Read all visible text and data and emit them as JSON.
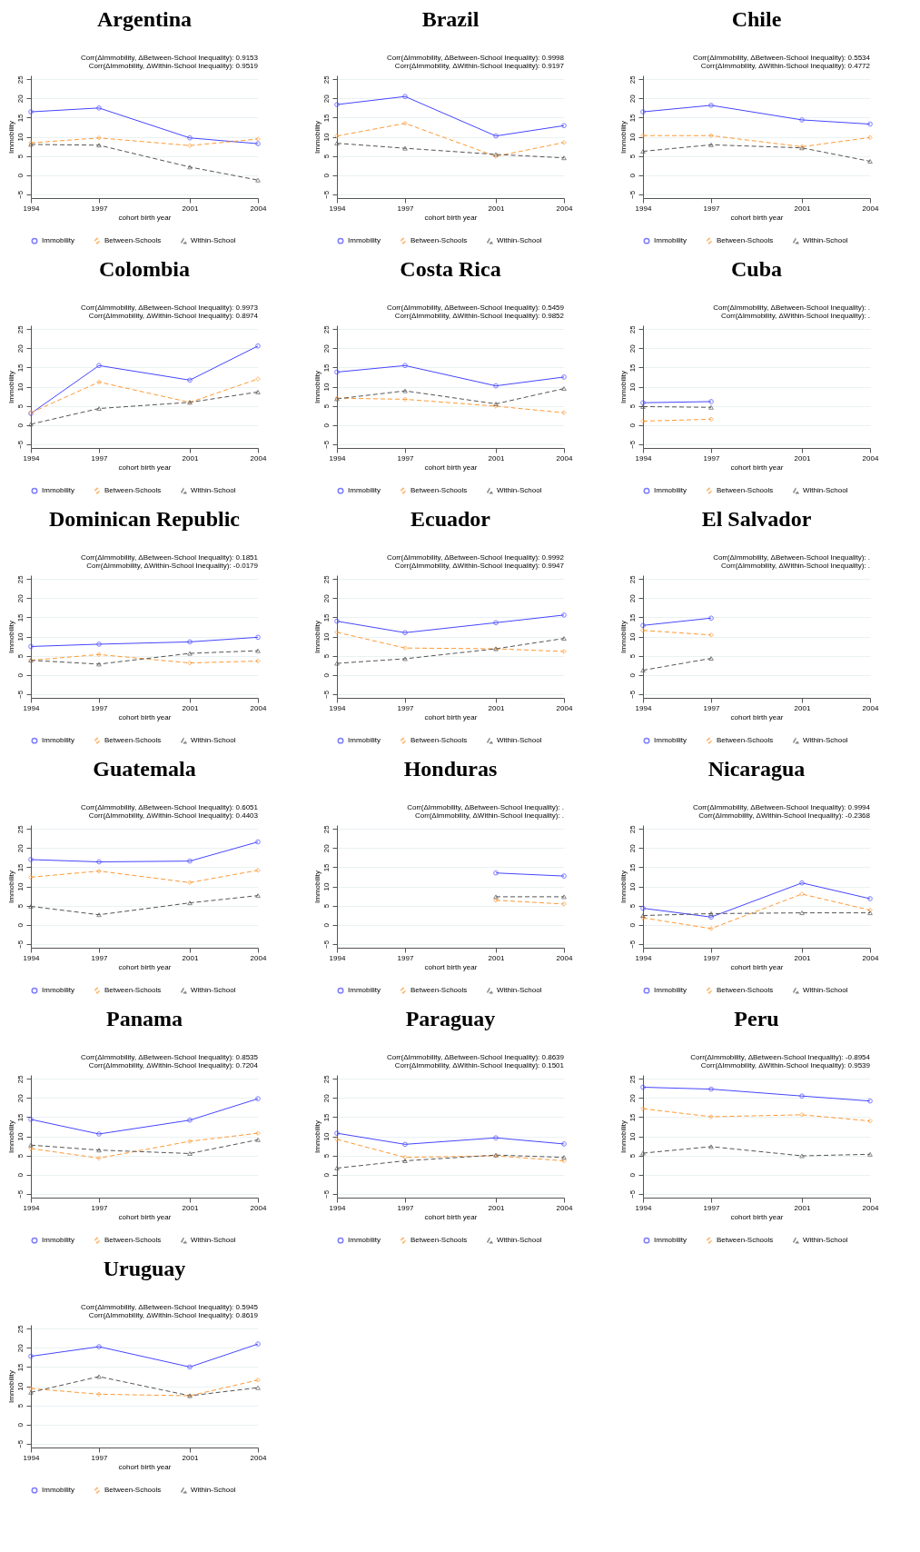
{
  "chart_data": [
    {
      "type": "line",
      "title": "Argentina",
      "annotations": [
        "Corr(ΔImmobility, ΔBetween-School Inequality): 0.9153",
        "Corr(ΔImmobility, ΔWithin-School Inequality): 0.9519"
      ],
      "xlabel": "cohort birth year",
      "ylabel": "Immobility",
      "x": [
        1994,
        1997,
        2001,
        2004
      ],
      "xlim": [
        1994,
        2004
      ],
      "xticks": [
        1994,
        1997,
        2001,
        2004
      ],
      "ylim": [
        -6,
        26
      ],
      "yticks": [
        -5,
        0,
        5,
        10,
        15,
        20,
        25
      ],
      "grid": "y",
      "legend": "bottom",
      "series": [
        {
          "name": "Immobility",
          "color": "#4646ff",
          "marker": "circle",
          "line_style": "solid",
          "values": [
            16.5,
            17.5,
            9.7,
            8.2
          ]
        },
        {
          "name": "Between-Schools",
          "color": "#ff9933",
          "marker": "diamond",
          "line_style": "dashed",
          "values": [
            8.4,
            9.7,
            7.7,
            9.4
          ]
        },
        {
          "name": "Within-School",
          "color": "#555555",
          "marker": "triangle",
          "line_style": "dashed",
          "values": [
            8.0,
            7.8,
            2.1,
            -1.3
          ]
        }
      ]
    },
    {
      "type": "line",
      "title": "Brazil",
      "annotations": [
        "Corr(ΔImmobility, ΔBetween-School Inequality): 0.9998",
        "Corr(ΔImmobility, ΔWithin-School Inequality): 0.9197"
      ],
      "xlabel": "cohort birth year",
      "ylabel": "Immobility",
      "x": [
        1994,
        1997,
        2001,
        2004
      ],
      "xlim": [
        1994,
        2004
      ],
      "xticks": [
        1994,
        1997,
        2001,
        2004
      ],
      "ylim": [
        -6,
        26
      ],
      "yticks": [
        -5,
        0,
        5,
        10,
        15,
        20,
        25
      ],
      "grid": "y",
      "legend": "bottom",
      "series": [
        {
          "name": "Immobility",
          "color": "#4646ff",
          "marker": "circle",
          "line_style": "solid",
          "values": [
            18.4,
            20.5,
            10.2,
            12.9
          ]
        },
        {
          "name": "Between-Schools",
          "color": "#ff9933",
          "marker": "diamond",
          "line_style": "dashed",
          "values": [
            10.2,
            13.5,
            4.9,
            8.5
          ]
        },
        {
          "name": "Within-School",
          "color": "#555555",
          "marker": "triangle",
          "line_style": "dashed",
          "values": [
            8.3,
            7.0,
            5.4,
            4.5
          ]
        }
      ]
    },
    {
      "type": "line",
      "title": "Chile",
      "annotations": [
        "Corr(ΔImmobility, ΔBetween-School Inequality): 0.5534",
        "Corr(ΔImmobility, ΔWithin-School Inequality): 0.4772"
      ],
      "xlabel": "cohort birth year",
      "ylabel": "Immobility",
      "x": [
        1994,
        1997,
        2001,
        2004
      ],
      "xlim": [
        1994,
        2004
      ],
      "xticks": [
        1994,
        1997,
        2001,
        2004
      ],
      "ylim": [
        -6,
        26
      ],
      "yticks": [
        -5,
        0,
        5,
        10,
        15,
        20,
        25
      ],
      "grid": "y",
      "legend": "bottom",
      "series": [
        {
          "name": "Immobility",
          "color": "#4646ff",
          "marker": "circle",
          "line_style": "solid",
          "values": [
            16.5,
            18.2,
            14.4,
            13.3
          ]
        },
        {
          "name": "Between-Schools",
          "color": "#ff9933",
          "marker": "diamond",
          "line_style": "dashed",
          "values": [
            10.3,
            10.3,
            7.4,
            9.8
          ]
        },
        {
          "name": "Within-School",
          "color": "#555555",
          "marker": "triangle",
          "line_style": "dashed",
          "values": [
            6.2,
            7.9,
            7.1,
            3.6
          ]
        }
      ]
    },
    {
      "type": "line",
      "title": "Colombia",
      "annotations": [
        "Corr(ΔImmobility, ΔBetween-School Inequality): 0.9973",
        "Corr(ΔImmobility, ΔWithin-School Inequality): 0.8974"
      ],
      "xlabel": "cohort birth year",
      "ylabel": "Immobility",
      "x": [
        1994,
        1997,
        2001,
        2004
      ],
      "xlim": [
        1994,
        2004
      ],
      "xticks": [
        1994,
        1997,
        2001,
        2004
      ],
      "ylim": [
        -6,
        26
      ],
      "yticks": [
        -5,
        0,
        5,
        10,
        15,
        20,
        25
      ],
      "grid": "y",
      "legend": "bottom",
      "series": [
        {
          "name": "Immobility",
          "color": "#4646ff",
          "marker": "circle",
          "line_style": "solid",
          "values": [
            3.0,
            15.5,
            11.7,
            20.6
          ]
        },
        {
          "name": "Between-Schools",
          "color": "#ff9933",
          "marker": "diamond",
          "line_style": "dashed",
          "values": [
            3.2,
            11.2,
            5.9,
            12.0
          ]
        },
        {
          "name": "Within-School",
          "color": "#555555",
          "marker": "triangle",
          "line_style": "dashed",
          "values": [
            0.2,
            4.3,
            5.9,
            8.6
          ]
        }
      ]
    },
    {
      "type": "line",
      "title": "Costa Rica",
      "annotations": [
        "Corr(ΔImmobility, ΔBetween-School Inequality): 0.5459",
        "Corr(ΔImmobility, ΔWithin-School Inequality): 0.9852"
      ],
      "xlabel": "cohort birth year",
      "ylabel": "Immobility",
      "x": [
        1994,
        1997,
        2001,
        2004
      ],
      "xlim": [
        1994,
        2004
      ],
      "xticks": [
        1994,
        1997,
        2001,
        2004
      ],
      "ylim": [
        -6,
        26
      ],
      "yticks": [
        -5,
        0,
        5,
        10,
        15,
        20,
        25
      ],
      "grid": "y",
      "legend": "bottom",
      "series": [
        {
          "name": "Immobility",
          "color": "#4646ff",
          "marker": "circle",
          "line_style": "solid",
          "values": [
            13.8,
            15.5,
            10.2,
            12.5
          ]
        },
        {
          "name": "Between-Schools",
          "color": "#ff9933",
          "marker": "diamond",
          "line_style": "dashed",
          "values": [
            7.0,
            6.7,
            4.9,
            3.2
          ]
        },
        {
          "name": "Within-School",
          "color": "#555555",
          "marker": "triangle",
          "line_style": "dashed",
          "values": [
            6.8,
            8.9,
            5.5,
            9.5
          ]
        }
      ]
    },
    {
      "type": "line",
      "title": "Cuba",
      "annotations": [
        "Corr(ΔImmobility, ΔBetween-School Inequality): .",
        "Corr(ΔImmobility, ΔWithin-School Inequality): ."
      ],
      "xlabel": "cohort birth year",
      "ylabel": "Immobility",
      "x": [
        1994,
        1997
      ],
      "xlim": [
        1994,
        2004
      ],
      "xticks": [
        1994,
        1997,
        2001,
        2004
      ],
      "ylim": [
        -6,
        26
      ],
      "yticks": [
        -5,
        0,
        5,
        10,
        15,
        20,
        25
      ],
      "grid": "y",
      "legend": "bottom",
      "series": [
        {
          "name": "Immobility",
          "color": "#4646ff",
          "marker": "circle",
          "line_style": "solid",
          "values": [
            5.8,
            6.1
          ]
        },
        {
          "name": "Between-Schools",
          "color": "#ff9933",
          "marker": "diamond",
          "line_style": "dashed",
          "values": [
            1.0,
            1.5
          ]
        },
        {
          "name": "Within-School",
          "color": "#555555",
          "marker": "triangle",
          "line_style": "dashed",
          "values": [
            4.8,
            4.6
          ]
        }
      ]
    },
    {
      "type": "line",
      "title": "Dominican Republic",
      "annotations": [
        "Corr(ΔImmobility, ΔBetween-School Inequality): 0.1851",
        "Corr(ΔImmobility, ΔWithin-School Inequality): -0.0179"
      ],
      "xlabel": "cohort birth year",
      "ylabel": "Immobility",
      "x": [
        1994,
        1997,
        2001,
        2004
      ],
      "xlim": [
        1994,
        2004
      ],
      "xticks": [
        1994,
        1997,
        2001,
        2004
      ],
      "ylim": [
        -6,
        26
      ],
      "yticks": [
        -5,
        0,
        5,
        10,
        15,
        20,
        25
      ],
      "grid": "y",
      "legend": "bottom",
      "series": [
        {
          "name": "Immobility",
          "color": "#4646ff",
          "marker": "circle",
          "line_style": "solid",
          "values": [
            7.4,
            8.0,
            8.6,
            9.8
          ]
        },
        {
          "name": "Between-Schools",
          "color": "#ff9933",
          "marker": "diamond",
          "line_style": "dashed",
          "values": [
            3.8,
            5.3,
            3.1,
            3.6
          ]
        },
        {
          "name": "Within-School",
          "color": "#555555",
          "marker": "triangle",
          "line_style": "dashed",
          "values": [
            3.8,
            2.8,
            5.6,
            6.3
          ]
        }
      ]
    },
    {
      "type": "line",
      "title": "Ecuador",
      "annotations": [
        "Corr(ΔImmobility, ΔBetween-School Inequality): 0.9992",
        "Corr(ΔImmobility, ΔWithin-School Inequality): 0.9947"
      ],
      "xlabel": "cohort birth year",
      "ylabel": "Immobility",
      "x": [
        1994,
        1997,
        2001,
        2004
      ],
      "xlim": [
        1994,
        2004
      ],
      "xticks": [
        1994,
        1997,
        2001,
        2004
      ],
      "ylim": [
        -6,
        26
      ],
      "yticks": [
        -5,
        0,
        5,
        10,
        15,
        20,
        25
      ],
      "grid": "y",
      "legend": "bottom",
      "series": [
        {
          "name": "Immobility",
          "color": "#4646ff",
          "marker": "circle",
          "line_style": "solid",
          "values": [
            14.0,
            11.0,
            13.6,
            15.6
          ]
        },
        {
          "name": "Between-Schools",
          "color": "#ff9933",
          "marker": "diamond",
          "line_style": "dashed",
          "values": [
            11.1,
            7.0,
            6.8,
            6.1
          ]
        },
        {
          "name": "Within-School",
          "color": "#555555",
          "marker": "triangle",
          "line_style": "dashed",
          "values": [
            3.0,
            4.2,
            6.8,
            9.5
          ]
        }
      ]
    },
    {
      "type": "line",
      "title": "El Salvador",
      "annotations": [
        "Corr(ΔImmobility, ΔBetween-School Inequality): .",
        "Corr(ΔImmobility, ΔWithin-School Inequality): ."
      ],
      "xlabel": "cohort birth year",
      "ylabel": "Immobility",
      "x": [
        1994,
        1997
      ],
      "xlim": [
        1994,
        2004
      ],
      "xticks": [
        1994,
        1997,
        2001,
        2004
      ],
      "ylim": [
        -6,
        26
      ],
      "yticks": [
        -5,
        0,
        5,
        10,
        15,
        20,
        25
      ],
      "grid": "y",
      "legend": "bottom",
      "series": [
        {
          "name": "Immobility",
          "color": "#4646ff",
          "marker": "circle",
          "line_style": "solid",
          "values": [
            12.9,
            14.8
          ]
        },
        {
          "name": "Between-Schools",
          "color": "#ff9933",
          "marker": "diamond",
          "line_style": "dashed",
          "values": [
            11.6,
            10.4
          ]
        },
        {
          "name": "Within-School",
          "color": "#555555",
          "marker": "triangle",
          "line_style": "dashed",
          "values": [
            1.2,
            4.3
          ]
        }
      ]
    },
    {
      "type": "line",
      "title": "Guatemala",
      "annotations": [
        "Corr(ΔImmobility, ΔBetween-School Inequality): 0.6051",
        "Corr(ΔImmobility, ΔWithin-School Inequality): 0.4403"
      ],
      "xlabel": "cohort birth year",
      "ylabel": "Immobility",
      "x": [
        1994,
        1997,
        2001,
        2004
      ],
      "xlim": [
        1994,
        2004
      ],
      "xticks": [
        1994,
        1997,
        2001,
        2004
      ],
      "ylim": [
        -6,
        26
      ],
      "yticks": [
        -5,
        0,
        5,
        10,
        15,
        20,
        25
      ],
      "grid": "y",
      "legend": "bottom",
      "series": [
        {
          "name": "Immobility",
          "color": "#4646ff",
          "marker": "circle",
          "line_style": "solid",
          "values": [
            17.0,
            16.4,
            16.6,
            21.6
          ]
        },
        {
          "name": "Between-Schools",
          "color": "#ff9933",
          "marker": "diamond",
          "line_style": "dashed",
          "values": [
            12.4,
            14.0,
            11.0,
            14.2
          ]
        },
        {
          "name": "Within-School",
          "color": "#555555",
          "marker": "triangle",
          "line_style": "dashed",
          "values": [
            4.8,
            2.6,
            5.7,
            7.6
          ]
        }
      ]
    },
    {
      "type": "line",
      "title": "Honduras",
      "annotations": [
        "Corr(ΔImmobility, ΔBetween-School Inequality): .",
        "Corr(ΔImmobility, ΔWithin-School Inequality): ."
      ],
      "xlabel": "cohort birth year",
      "ylabel": "Immobility",
      "x": [
        2001,
        2004
      ],
      "xlim": [
        1994,
        2004
      ],
      "xticks": [
        1994,
        1997,
        2001,
        2004
      ],
      "ylim": [
        -6,
        26
      ],
      "yticks": [
        -5,
        0,
        5,
        10,
        15,
        20,
        25
      ],
      "grid": "y",
      "legend": "bottom",
      "series": [
        {
          "name": "Immobility",
          "color": "#4646ff",
          "marker": "circle",
          "line_style": "solid",
          "values": [
            13.5,
            12.7
          ]
        },
        {
          "name": "Between-Schools",
          "color": "#ff9933",
          "marker": "diamond",
          "line_style": "dashed",
          "values": [
            6.4,
            5.4
          ]
        },
        {
          "name": "Within-School",
          "color": "#555555",
          "marker": "triangle",
          "line_style": "dashed",
          "values": [
            7.3,
            7.3
          ]
        }
      ]
    },
    {
      "type": "line",
      "title": "Nicaragua",
      "annotations": [
        "Corr(ΔImmobility, ΔBetween-School Inequality): 0.9994",
        "Corr(ΔImmobility, ΔWithin-School Inequality): -0.2368"
      ],
      "xlabel": "cohort birth year",
      "ylabel": "Immobility",
      "x": [
        1994,
        1997,
        2001,
        2004
      ],
      "xlim": [
        1994,
        2004
      ],
      "xticks": [
        1994,
        1997,
        2001,
        2004
      ],
      "ylim": [
        -6,
        26
      ],
      "yticks": [
        -5,
        0,
        5,
        10,
        15,
        20,
        25
      ],
      "grid": "y",
      "legend": "bottom",
      "series": [
        {
          "name": "Immobility",
          "color": "#4646ff",
          "marker": "circle",
          "line_style": "solid",
          "values": [
            4.3,
            2.0,
            10.9,
            6.8
          ]
        },
        {
          "name": "Between-Schools",
          "color": "#ff9933",
          "marker": "diamond",
          "line_style": "dashed",
          "values": [
            1.8,
            -1.0,
            8.0,
            3.8
          ]
        },
        {
          "name": "Within-School",
          "color": "#555555",
          "marker": "triangle",
          "line_style": "dashed",
          "values": [
            2.4,
            2.9,
            3.1,
            3.1
          ]
        }
      ]
    },
    {
      "type": "line",
      "title": "Panama",
      "annotations": [
        "Corr(ΔImmobility, ΔBetween-School Inequality): 0.8535",
        "Corr(ΔImmobility, ΔWithin-School Inequality): 0.7204"
      ],
      "xlabel": "cohort birth year",
      "ylabel": "Immobility",
      "x": [
        1994,
        1997,
        2001,
        2004
      ],
      "xlim": [
        1994,
        2004
      ],
      "xticks": [
        1994,
        1997,
        2001,
        2004
      ],
      "ylim": [
        -6,
        26
      ],
      "yticks": [
        -5,
        0,
        5,
        10,
        15,
        20,
        25
      ],
      "grid": "y",
      "legend": "bottom",
      "series": [
        {
          "name": "Immobility",
          "color": "#4646ff",
          "marker": "circle",
          "line_style": "solid",
          "values": [
            14.4,
            10.6,
            14.2,
            19.8
          ]
        },
        {
          "name": "Between-Schools",
          "color": "#ff9933",
          "marker": "diamond",
          "line_style": "dashed",
          "values": [
            6.8,
            4.3,
            8.7,
            10.8
          ]
        },
        {
          "name": "Within-School",
          "color": "#555555",
          "marker": "triangle",
          "line_style": "dashed",
          "values": [
            7.7,
            6.4,
            5.5,
            9.1
          ]
        }
      ]
    },
    {
      "type": "line",
      "title": "Paraguay",
      "annotations": [
        "Corr(ΔImmobility, ΔBetween-School Inequality): 0.8639",
        "Corr(ΔImmobility, ΔWithin-School Inequality): 0.1501"
      ],
      "xlabel": "cohort birth year",
      "ylabel": "Immobility",
      "x": [
        1994,
        1997,
        2001,
        2004
      ],
      "xlim": [
        1994,
        2004
      ],
      "xticks": [
        1994,
        1997,
        2001,
        2004
      ],
      "ylim": [
        -6,
        26
      ],
      "yticks": [
        -5,
        0,
        5,
        10,
        15,
        20,
        25
      ],
      "grid": "y",
      "legend": "bottom",
      "series": [
        {
          "name": "Immobility",
          "color": "#4646ff",
          "marker": "circle",
          "line_style": "solid",
          "values": [
            10.8,
            7.9,
            9.6,
            8.0
          ]
        },
        {
          "name": "Between-Schools",
          "color": "#ff9933",
          "marker": "diamond",
          "line_style": "dashed",
          "values": [
            9.2,
            4.5,
            4.9,
            3.6
          ]
        },
        {
          "name": "Within-School",
          "color": "#555555",
          "marker": "triangle",
          "line_style": "dashed",
          "values": [
            1.7,
            3.6,
            5.1,
            4.5
          ]
        }
      ]
    },
    {
      "type": "line",
      "title": "Peru",
      "annotations": [
        "Corr(ΔImmobility, ΔBetween-School Inequality): -0.8954",
        "Corr(ΔImmobility, ΔWithin-School Inequality): 0.9539"
      ],
      "xlabel": "cohort birth year",
      "ylabel": "Immobility",
      "x": [
        1994,
        1997,
        2001,
        2004
      ],
      "xlim": [
        1994,
        2004
      ],
      "xticks": [
        1994,
        1997,
        2001,
        2004
      ],
      "ylim": [
        -6,
        26
      ],
      "yticks": [
        -5,
        0,
        5,
        10,
        15,
        20,
        25
      ],
      "grid": "y",
      "legend": "bottom",
      "series": [
        {
          "name": "Immobility",
          "color": "#4646ff",
          "marker": "circle",
          "line_style": "solid",
          "values": [
            22.8,
            22.3,
            20.5,
            19.2
          ]
        },
        {
          "name": "Between-Schools",
          "color": "#ff9933",
          "marker": "diamond",
          "line_style": "dashed",
          "values": [
            17.2,
            15.1,
            15.6,
            14.0
          ]
        },
        {
          "name": "Within-School",
          "color": "#555555",
          "marker": "triangle",
          "line_style": "dashed",
          "values": [
            5.6,
            7.3,
            4.9,
            5.3
          ]
        }
      ]
    },
    {
      "type": "line",
      "title": "Uruguay",
      "annotations": [
        "Corr(ΔImmobility, ΔBetween-School Inequality): 0.5945",
        "Corr(ΔImmobility, ΔWithin-School Inequality): 0.8619"
      ],
      "xlabel": "cohort birth year",
      "ylabel": "Immobility",
      "x": [
        1994,
        1997,
        2001,
        2004
      ],
      "xlim": [
        1994,
        2004
      ],
      "xticks": [
        1994,
        1997,
        2001,
        2004
      ],
      "ylim": [
        -6,
        26
      ],
      "yticks": [
        -5,
        0,
        5,
        10,
        15,
        20,
        25
      ],
      "grid": "y",
      "legend": "bottom",
      "series": [
        {
          "name": "Immobility",
          "color": "#4646ff",
          "marker": "circle",
          "line_style": "solid",
          "values": [
            17.8,
            20.3,
            15.0,
            21.0
          ]
        },
        {
          "name": "Between-Schools",
          "color": "#ff9933",
          "marker": "diamond",
          "line_style": "dashed",
          "values": [
            9.4,
            7.9,
            7.5,
            11.6
          ]
        },
        {
          "name": "Within-School",
          "color": "#555555",
          "marker": "triangle",
          "line_style": "dashed",
          "values": [
            8.4,
            12.5,
            7.5,
            9.6
          ]
        }
      ]
    }
  ]
}
